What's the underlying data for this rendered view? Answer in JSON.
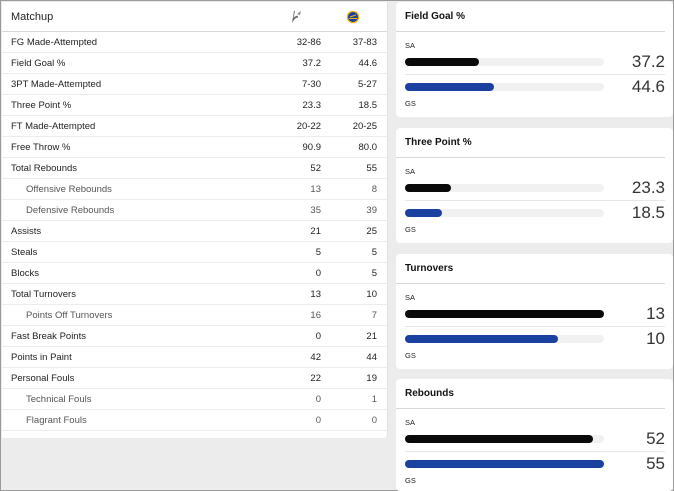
{
  "matchup": {
    "title": "Matchup",
    "team1_logo": "spurs-logo-icon",
    "team2_logo": "warriors-logo-icon",
    "rows": [
      {
        "label": "FG Made-Attempted",
        "t1": "32-86",
        "t2": "37-83",
        "sub": false
      },
      {
        "label": "Field Goal %",
        "t1": "37.2",
        "t2": "44.6",
        "sub": false
      },
      {
        "label": "3PT Made-Attempted",
        "t1": "7-30",
        "t2": "5-27",
        "sub": false
      },
      {
        "label": "Three Point %",
        "t1": "23.3",
        "t2": "18.5",
        "sub": false
      },
      {
        "label": "FT Made-Attempted",
        "t1": "20-22",
        "t2": "20-25",
        "sub": false
      },
      {
        "label": "Free Throw %",
        "t1": "90.9",
        "t2": "80.0",
        "sub": false
      },
      {
        "label": "Total Rebounds",
        "t1": "52",
        "t2": "55",
        "sub": false
      },
      {
        "label": "Offensive Rebounds",
        "t1": "13",
        "t2": "8",
        "sub": true
      },
      {
        "label": "Defensive Rebounds",
        "t1": "35",
        "t2": "39",
        "sub": true
      },
      {
        "label": "Assists",
        "t1": "21",
        "t2": "25",
        "sub": false
      },
      {
        "label": "Steals",
        "t1": "5",
        "t2": "5",
        "sub": false
      },
      {
        "label": "Blocks",
        "t1": "0",
        "t2": "5",
        "sub": false
      },
      {
        "label": "Total Turnovers",
        "t1": "13",
        "t2": "10",
        "sub": false
      },
      {
        "label": "Points Off Turnovers",
        "t1": "16",
        "t2": "7",
        "sub": true
      },
      {
        "label": "Fast Break Points",
        "t1": "0",
        "t2": "21",
        "sub": false
      },
      {
        "label": "Points in Paint",
        "t1": "42",
        "t2": "44",
        "sub": false
      },
      {
        "label": "Personal Fouls",
        "t1": "22",
        "t2": "19",
        "sub": false
      },
      {
        "label": "Technical Fouls",
        "t1": "0",
        "t2": "1",
        "sub": true
      },
      {
        "label": "Flagrant Fouls",
        "t1": "0",
        "t2": "0",
        "sub": true
      }
    ]
  },
  "colors": {
    "team1": "#0a0a0a",
    "team2": "#1a41a0",
    "track": "#f1f1f1"
  },
  "cards": [
    {
      "title": "Field Goal %",
      "team1": "SA",
      "team2": "GS",
      "v1": "37.2",
      "v2": "44.6",
      "f1": 0.372,
      "f2": 0.446
    },
    {
      "title": "Three Point %",
      "team1": "SA",
      "team2": "GS",
      "v1": "23.3",
      "v2": "18.5",
      "f1": 0.233,
      "f2": 0.185
    },
    {
      "title": "Turnovers",
      "team1": "SA",
      "team2": "GS",
      "v1": "13",
      "v2": "10",
      "f1": 1.0,
      "f2": 0.77
    },
    {
      "title": "Rebounds",
      "team1": "SA",
      "team2": "GS",
      "v1": "52",
      "v2": "55",
      "f1": 0.945,
      "f2": 1.0
    }
  ]
}
